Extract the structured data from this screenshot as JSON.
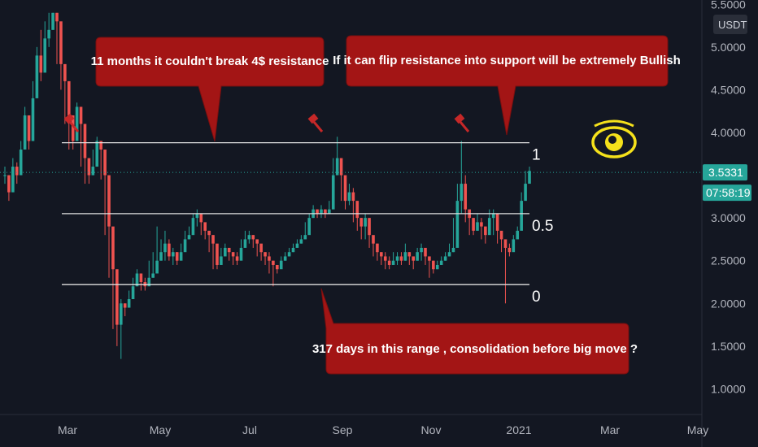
{
  "chart_data": {
    "type": "candlestick",
    "currency": "USDT",
    "price_axis": {
      "ticks": [
        1.0,
        1.5,
        2.0,
        2.5,
        3.0,
        3.5,
        4.0,
        4.5,
        5.0,
        5.5
      ],
      "labels": [
        "1.0000",
        "1.5000",
        "2.0000",
        "2.5000",
        "3.0000",
        "",
        "4.0000",
        "4.5000",
        "5.0000",
        "5.5000"
      ],
      "ylim": [
        0.7,
        5.55
      ]
    },
    "time_axis": {
      "labels": [
        "Mar",
        "May",
        "Jul",
        "Sep",
        "Nov",
        "2021",
        "Mar",
        "May"
      ]
    },
    "current_price": {
      "label": "3.5331",
      "value": 3.5331,
      "color": "#26a69a"
    },
    "countdown": {
      "label": "07:58:19"
    },
    "fib_levels": [
      {
        "label": "1",
        "value": 3.88
      },
      {
        "label": "0.5",
        "value": 3.05
      },
      {
        "label": "0",
        "value": 2.22
      }
    ],
    "annotations": [
      {
        "text": "11 months it couldn't break 4$ resistance"
      },
      {
        "text": "If it can flip resistance into support will be extremely Bullish"
      },
      {
        "text": "317 days in this range , consolidation before big move ?"
      }
    ],
    "closes": [
      3.5,
      3.3,
      3.6,
      3.5,
      3.8,
      4.2,
      3.9,
      4.4,
      4.9,
      4.7,
      5.1,
      5.2,
      5.4,
      5.3,
      4.8,
      4.6,
      4.2,
      3.9,
      4.3,
      4.1,
      3.7,
      3.5,
      3.6,
      3.9,
      3.8,
      3.5,
      2.9,
      2.4,
      1.75,
      2.0,
      1.95,
      2.05,
      2.2,
      2.35,
      2.25,
      2.2,
      2.3,
      2.35,
      2.5,
      2.6,
      2.7,
      2.55,
      2.6,
      2.5,
      2.6,
      2.75,
      2.8,
      3.0,
      3.05,
      2.95,
      2.85,
      2.8,
      2.7,
      2.45,
      2.55,
      2.65,
      2.6,
      2.55,
      2.5,
      2.65,
      2.75,
      2.8,
      2.75,
      2.7,
      2.6,
      2.55,
      2.5,
      2.45,
      2.4,
      2.5,
      2.55,
      2.6,
      2.65,
      2.7,
      2.75,
      2.8,
      3.0,
      3.1,
      3.05,
      3.1,
      3.05,
      3.1,
      3.5,
      3.7,
      3.5,
      3.2,
      3.3,
      3.2,
      3.0,
      2.9,
      3.0,
      2.8,
      2.7,
      2.6,
      2.55,
      2.5,
      2.45,
      2.5,
      2.55,
      2.5,
      2.6,
      2.55,
      2.5,
      2.6,
      2.65,
      2.55,
      2.5,
      2.4,
      2.45,
      2.5,
      2.55,
      2.6,
      2.65,
      3.2,
      3.4,
      3.1,
      3.0,
      2.85,
      2.95,
      2.9,
      2.8,
      3.0,
      3.05,
      2.85,
      2.75,
      2.65,
      2.6,
      2.75,
      2.85,
      3.2,
      3.4,
      3.55
    ],
    "highs": [
      3.6,
      3.5,
      3.7,
      3.65,
      3.9,
      4.3,
      4.0,
      4.6,
      5.0,
      5.2,
      5.3,
      5.4,
      5.4,
      5.4,
      4.9,
      4.7,
      4.3,
      4.0,
      4.35,
      4.2,
      3.75,
      3.6,
      3.8,
      3.95,
      3.9,
      3.6,
      3.0,
      2.5,
      1.95,
      2.05,
      2.0,
      2.15,
      2.3,
      2.4,
      2.3,
      2.3,
      2.5,
      2.6,
      2.9,
      2.75,
      2.85,
      2.75,
      2.65,
      2.6,
      2.7,
      2.85,
      2.9,
      3.05,
      3.1,
      3.0,
      2.9,
      2.85,
      2.8,
      2.55,
      2.65,
      2.7,
      2.65,
      2.6,
      2.6,
      2.75,
      2.85,
      2.85,
      2.8,
      2.75,
      2.65,
      2.6,
      2.6,
      2.5,
      2.45,
      2.55,
      2.6,
      2.65,
      2.7,
      2.75,
      2.8,
      2.95,
      3.05,
      3.15,
      3.1,
      3.15,
      3.1,
      3.2,
      3.7,
      3.95,
      3.6,
      3.3,
      3.4,
      3.35,
      3.1,
      3.0,
      3.05,
      2.9,
      2.75,
      2.7,
      2.6,
      2.6,
      2.55,
      2.6,
      2.6,
      2.6,
      2.7,
      2.6,
      2.55,
      2.65,
      2.7,
      2.6,
      2.55,
      2.5,
      2.5,
      2.55,
      2.6,
      2.7,
      3.0,
      3.4,
      3.9,
      3.5,
      3.1,
      3.0,
      3.05,
      3.0,
      2.9,
      3.1,
      3.1,
      3.0,
      2.8,
      2.7,
      2.7,
      2.8,
      2.9,
      3.3,
      3.55,
      3.6
    ],
    "lows": [
      3.4,
      3.2,
      3.5,
      3.4,
      3.7,
      4.0,
      3.8,
      4.2,
      4.6,
      4.6,
      4.9,
      5.0,
      5.2,
      4.8,
      4.5,
      4.1,
      3.8,
      3.8,
      4.0,
      3.6,
      3.4,
      3.4,
      3.5,
      3.7,
      3.45,
      2.8,
      2.3,
      1.7,
      1.5,
      1.35,
      1.85,
      1.95,
      2.1,
      2.2,
      2.15,
      2.15,
      2.25,
      2.3,
      2.4,
      2.5,
      2.5,
      2.5,
      2.45,
      2.45,
      2.55,
      2.7,
      2.75,
      2.9,
      2.9,
      2.8,
      2.75,
      2.6,
      2.4,
      2.4,
      2.5,
      2.55,
      2.5,
      2.45,
      2.45,
      2.6,
      2.7,
      2.7,
      2.65,
      2.55,
      2.5,
      2.45,
      2.35,
      2.2,
      2.35,
      2.45,
      2.5,
      2.55,
      2.6,
      2.65,
      2.7,
      2.75,
      2.9,
      3.0,
      3.0,
      3.0,
      3.0,
      3.05,
      3.4,
      3.5,
      3.2,
      3.1,
      3.15,
      2.95,
      2.85,
      2.75,
      2.75,
      2.65,
      2.55,
      2.5,
      2.45,
      2.4,
      2.4,
      2.45,
      2.45,
      2.45,
      2.5,
      2.45,
      2.4,
      2.5,
      2.5,
      2.45,
      2.3,
      2.35,
      2.4,
      2.45,
      2.5,
      2.55,
      2.6,
      3.1,
      3.05,
      2.95,
      2.8,
      2.8,
      2.85,
      2.75,
      2.7,
      2.9,
      2.8,
      2.7,
      2.6,
      2.0,
      2.55,
      2.7,
      2.8,
      3.15,
      3.35,
      3.5
    ],
    "opens": [
      3.5,
      3.5,
      3.3,
      3.6,
      3.5,
      3.8,
      4.2,
      3.9,
      4.4,
      4.9,
      4.7,
      5.1,
      5.2,
      5.4,
      5.3,
      4.8,
      4.6,
      4.2,
      3.9,
      4.3,
      4.1,
      3.7,
      3.5,
      3.6,
      3.9,
      3.8,
      3.5,
      2.9,
      2.4,
      1.75,
      2.0,
      1.95,
      2.05,
      2.2,
      2.35,
      2.25,
      2.2,
      2.3,
      2.35,
      2.5,
      2.6,
      2.7,
      2.55,
      2.6,
      2.5,
      2.6,
      2.75,
      2.8,
      3.0,
      3.05,
      2.95,
      2.85,
      2.8,
      2.7,
      2.45,
      2.55,
      2.65,
      2.6,
      2.55,
      2.5,
      2.65,
      2.75,
      2.8,
      2.75,
      2.7,
      2.6,
      2.55,
      2.5,
      2.45,
      2.4,
      2.5,
      2.55,
      2.6,
      2.65,
      2.7,
      2.75,
      2.8,
      3.0,
      3.1,
      3.05,
      3.1,
      3.05,
      3.1,
      3.5,
      3.7,
      3.5,
      3.2,
      3.3,
      3.2,
      3.0,
      2.9,
      3.0,
      2.8,
      2.7,
      2.6,
      2.55,
      2.5,
      2.45,
      2.5,
      2.55,
      2.5,
      2.6,
      2.55,
      2.5,
      2.6,
      2.65,
      2.55,
      2.5,
      2.4,
      2.45,
      2.5,
      2.55,
      2.6,
      2.65,
      3.2,
      3.4,
      3.1,
      3.0,
      2.85,
      2.95,
      2.9,
      2.8,
      3.0,
      3.05,
      2.85,
      2.75,
      2.65,
      2.6,
      2.75,
      2.85,
      3.2,
      3.4
    ]
  }
}
